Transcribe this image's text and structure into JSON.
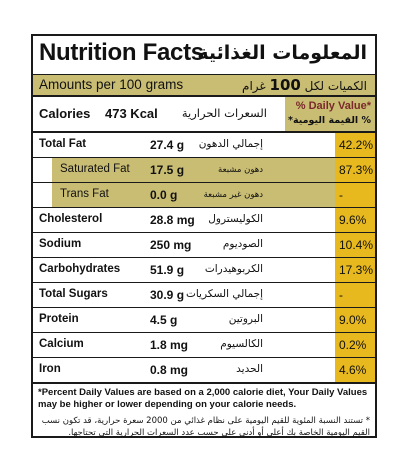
{
  "header": {
    "title_en": "Nutrition Facts",
    "title_ar": "المعلومات الغذائية",
    "amounts_en": "Amounts per 100 grams",
    "amounts_ar_prefix": "الكميات لكل",
    "amounts_ar_number": "100",
    "amounts_ar_suffix": "غرام"
  },
  "calories": {
    "label": "Calories",
    "value": "473 Kcal",
    "label_ar": "السعرات الحرارية",
    "dv_en": "% Daily Value*",
    "dv_ar": "% القيمة اليومية*"
  },
  "nutrients": [
    {
      "name": "Total Fat",
      "value": "27.4 g",
      "ar": "إجمالي الدهون",
      "pct": "42.2%"
    },
    {
      "name": "Saturated Fat",
      "value": "17.5 g",
      "ar": "دهون مشبعة",
      "pct": "87.3%"
    },
    {
      "name": "Trans Fat",
      "value": "0.0 g",
      "ar": "دهون غير مشبعة",
      "pct": "-"
    },
    {
      "name": "Cholesterol",
      "value": "28.8 mg",
      "ar": "الكوليسترول",
      "pct": "9.6%"
    },
    {
      "name": "Sodium",
      "value": "250 mg",
      "ar": "الصوديوم",
      "pct": "10.4%"
    },
    {
      "name": "Carbohydrates",
      "value": "51.9 g",
      "ar": "الكربوهيدرات",
      "pct": "17.3%"
    },
    {
      "name": "Total Sugars",
      "value": "30.9 g",
      "ar": "إجمالي السكريات",
      "pct": "-"
    },
    {
      "name": "Protein",
      "value": "4.5 g",
      "ar": "البروتين",
      "pct": "9.0%"
    },
    {
      "name": "Calcium",
      "value": "1.8 mg",
      "ar": "الكالسيوم",
      "pct": "0.2%"
    },
    {
      "name": "Iron",
      "value": "0.8 mg",
      "ar": "الحديد",
      "pct": "4.6%"
    }
  ],
  "footnote": {
    "en": "*Percent Daily Values are based on a 2,000 calorie diet, Your Daily Values may be higher or lower depending on your calorie needs.",
    "ar": "* تستند النسبة المئوية للقيم اليومية على نظام غذائي من 2000 سعرة حرارية، قد تكون نسب القيم اليومية الخاصة بك أعلى أو أدنى على حسب عدد السعرات الحرارية التي تحتاجها."
  },
  "colors": {
    "header_band": "#c9bd74",
    "percent_band": "#e8b91e",
    "border": "#1a1a1a"
  }
}
